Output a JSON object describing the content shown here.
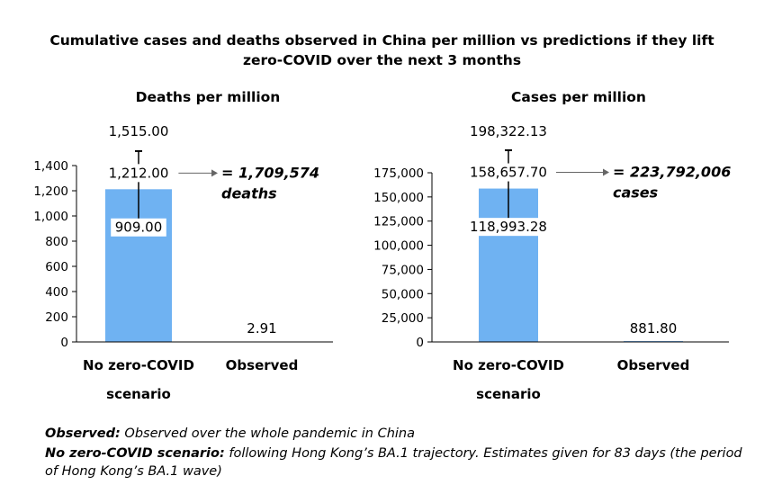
{
  "title": "Cumulative cases and deaths observed in China per million vs predictions if they lift zero-COVID over the next 3 months",
  "chart_data": [
    {
      "type": "bar",
      "title": "Deaths per million",
      "categories": [
        "No zero-COVID scenario",
        "Observed"
      ],
      "category_lines": [
        [
          "No zero-COVID",
          "scenario"
        ],
        [
          "Observed"
        ]
      ],
      "values": [
        1212.0,
        2.91
      ],
      "value_labels": [
        "1,212.00",
        "2.91"
      ],
      "error_bar": {
        "category": "No zero-COVID scenario",
        "upper": 1515.0,
        "lower": 909.0,
        "upper_label": "1,515.00",
        "lower_label": "909.00"
      },
      "annotation": {
        "line1": "= 1,709,574",
        "line2": "deaths"
      },
      "ylim": [
        0,
        1400
      ],
      "yticks": [
        0,
        200,
        400,
        600,
        800,
        1000,
        1200,
        1400
      ],
      "ytick_labels": [
        "0",
        "200",
        "400",
        "600",
        "800",
        "1,000",
        "1,200",
        "1,400"
      ],
      "color": "#6fb2f2",
      "grid": false
    },
    {
      "type": "bar",
      "title": "Cases per million",
      "categories": [
        "No zero-COVID scenario",
        "Observed"
      ],
      "category_lines": [
        [
          "No zero-COVID",
          "scenario"
        ],
        [
          "Observed"
        ]
      ],
      "values": [
        158657.7,
        881.8
      ],
      "value_labels": [
        "158,657.70",
        "881.80"
      ],
      "error_bar": {
        "category": "No zero-COVID scenario",
        "upper": 198322.13,
        "lower": 118993.28,
        "upper_label": "198,322.13",
        "lower_label": "118,993.28"
      },
      "annotation": {
        "line1": "= 223,792,006",
        "line2": "cases"
      },
      "ylim": [
        0,
        175000
      ],
      "yticks": [
        0,
        25000,
        50000,
        75000,
        100000,
        125000,
        150000,
        175000
      ],
      "ytick_labels": [
        "0",
        "25,000",
        "50,000",
        "75,000",
        "100,000",
        "125,000",
        "150,000",
        "175,000"
      ],
      "color": "#6fb2f2",
      "grid": false
    }
  ],
  "footnotes": [
    {
      "label": "Observed:",
      "text": " Observed over the whole pandemic in China"
    },
    {
      "label": "No zero-COVID scenario:",
      "text": " following Hong Kong’s BA.1 trajectory. Estimates given for 83 days (the period of Hong Kong’s BA.1 wave)"
    }
  ]
}
